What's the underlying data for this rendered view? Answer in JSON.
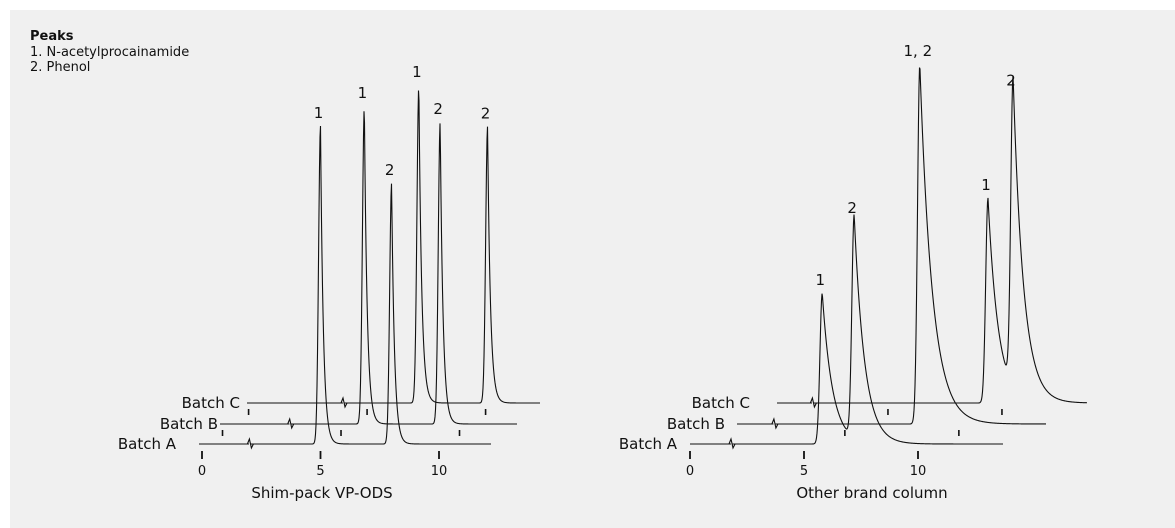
{
  "legend": {
    "title": "Peaks",
    "items": [
      "1. N-acetylprocainamide",
      "2. Phenol"
    ]
  },
  "chart_data": [
    {
      "type": "line",
      "title": "Shim-pack VP-ODS",
      "xlabel": "",
      "ylabel": "",
      "x_ticks": [
        0,
        5,
        10
      ],
      "grid": false,
      "series": [
        {
          "name": "Batch A",
          "peaks": [
            {
              "label": "1",
              "rt": 5.0,
              "height": 1.0,
              "tail": "sharp"
            },
            {
              "label": "2",
              "rt": 8.0,
              "height": 0.82,
              "tail": "sharp"
            }
          ]
        },
        {
          "name": "Batch B",
          "peaks": [
            {
              "label": "1",
              "rt": 5.9,
              "height": 1.0,
              "tail": "sharp"
            },
            {
              "label": "2",
              "rt": 9.1,
              "height": 0.95,
              "tail": "sharp"
            }
          ]
        },
        {
          "name": "Batch C",
          "peaks": [
            {
              "label": "1",
              "rt": 7.1,
              "height": 1.0,
              "tail": "sharp"
            },
            {
              "label": "2",
              "rt": 10.0,
              "height": 0.87,
              "tail": "sharp"
            }
          ]
        }
      ]
    },
    {
      "type": "line",
      "title": "Other brand column",
      "xlabel": "",
      "ylabel": "",
      "x_ticks": [
        0,
        5,
        10
      ],
      "grid": false,
      "series": [
        {
          "name": "Batch A",
          "peaks": [
            {
              "label": "1",
              "rt": 5.8,
              "height": 0.42,
              "tail": "broad"
            },
            {
              "label": "2",
              "rt": 7.2,
              "height": 0.62,
              "tail": "broad"
            }
          ]
        },
        {
          "name": "Batch B",
          "peaks": [
            {
              "label": "1, 2",
              "rt": 8.2,
              "height": 1.0,
              "tail": "broad"
            }
          ]
        },
        {
          "name": "Batch C",
          "peaks": [
            {
              "label": "1",
              "rt": 9.3,
              "height": 0.57,
              "tail": "broad"
            },
            {
              "label": "2",
              "rt": 10.4,
              "height": 0.86,
              "tail": "broad"
            }
          ]
        }
      ]
    }
  ]
}
